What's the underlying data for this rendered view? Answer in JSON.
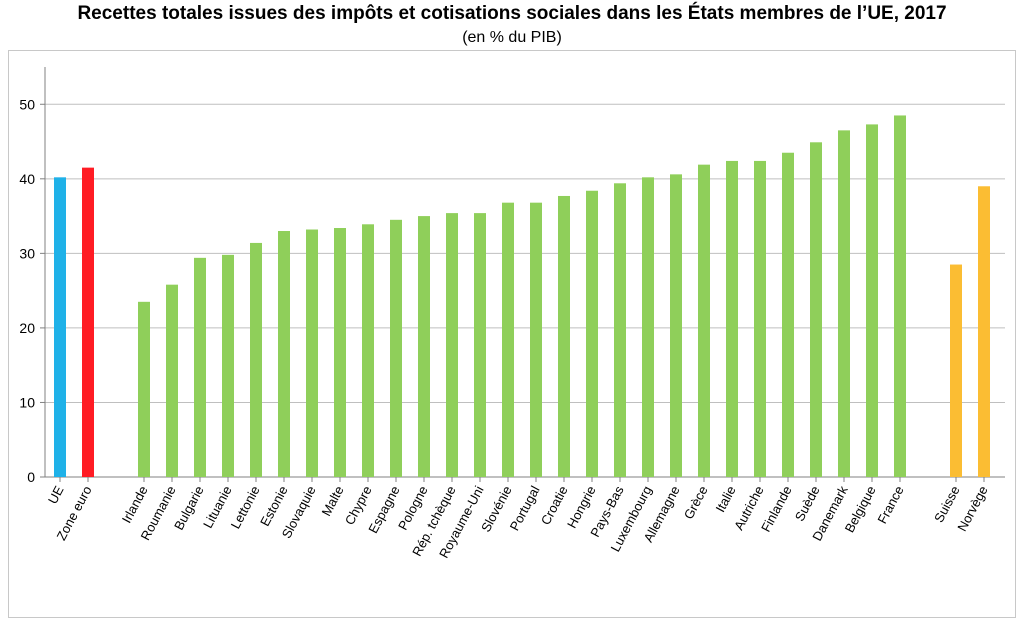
{
  "chart_data": {
    "type": "bar",
    "title": "Recettes totales issues des impôts et cotisations sociales dans les États membres de l’UE, 2017",
    "subtitle": "(en % du PIB)",
    "xlabel": "",
    "ylabel": "",
    "ylim": [
      0,
      55
    ],
    "yticks": [
      0,
      10,
      20,
      30,
      40,
      50
    ],
    "grid": true,
    "colors": {
      "ue": "#1fb1e8",
      "zone_euro": "#ff1c24",
      "members": "#8fcf5a",
      "non_eu": "#fbbd33"
    },
    "bars": [
      {
        "label": "UE",
        "value": 40.2,
        "group": "ue"
      },
      {
        "label": "Zone euro",
        "value": 41.5,
        "group": "zone_euro"
      },
      {
        "label": "Irlande",
        "value": 23.5,
        "group": "members"
      },
      {
        "label": "Roumanie",
        "value": 25.8,
        "group": "members"
      },
      {
        "label": "Bulgarie",
        "value": 29.4,
        "group": "members"
      },
      {
        "label": "Lituanie",
        "value": 29.8,
        "group": "members"
      },
      {
        "label": "Lettonie",
        "value": 31.4,
        "group": "members"
      },
      {
        "label": "Estonie",
        "value": 33.0,
        "group": "members"
      },
      {
        "label": "Slovaquie",
        "value": 33.2,
        "group": "members"
      },
      {
        "label": "Malte",
        "value": 33.4,
        "group": "members"
      },
      {
        "label": "Chypre",
        "value": 33.9,
        "group": "members"
      },
      {
        "label": "Espagne",
        "value": 34.5,
        "group": "members"
      },
      {
        "label": "Pologne",
        "value": 35.0,
        "group": "members"
      },
      {
        "label": "Rép. tchèque",
        "value": 35.4,
        "group": "members"
      },
      {
        "label": "Royaume-Uni",
        "value": 35.4,
        "group": "members"
      },
      {
        "label": "Slovénie",
        "value": 36.8,
        "group": "members"
      },
      {
        "label": "Portugal",
        "value": 36.8,
        "group": "members"
      },
      {
        "label": "Croatie",
        "value": 37.7,
        "group": "members"
      },
      {
        "label": "Hongrie",
        "value": 38.4,
        "group": "members"
      },
      {
        "label": "Pays-Bas",
        "value": 39.4,
        "group": "members"
      },
      {
        "label": "Luxembourg",
        "value": 40.2,
        "group": "members"
      },
      {
        "label": "Allemagne",
        "value": 40.6,
        "group": "members"
      },
      {
        "label": "Grèce",
        "value": 41.9,
        "group": "members"
      },
      {
        "label": "Italie",
        "value": 42.4,
        "group": "members"
      },
      {
        "label": "Autriche",
        "value": 42.4,
        "group": "members"
      },
      {
        "label": "Finlande",
        "value": 43.5,
        "group": "members"
      },
      {
        "label": "Suède",
        "value": 44.9,
        "group": "members"
      },
      {
        "label": "Danemark",
        "value": 46.5,
        "group": "members"
      },
      {
        "label": "Belgique",
        "value": 47.3,
        "group": "members"
      },
      {
        "label": "France",
        "value": 48.5,
        "group": "members"
      },
      {
        "label": "Suisse",
        "value": 28.5,
        "group": "non_eu"
      },
      {
        "label": "Norvège",
        "value": 39.0,
        "group": "non_eu"
      }
    ]
  }
}
